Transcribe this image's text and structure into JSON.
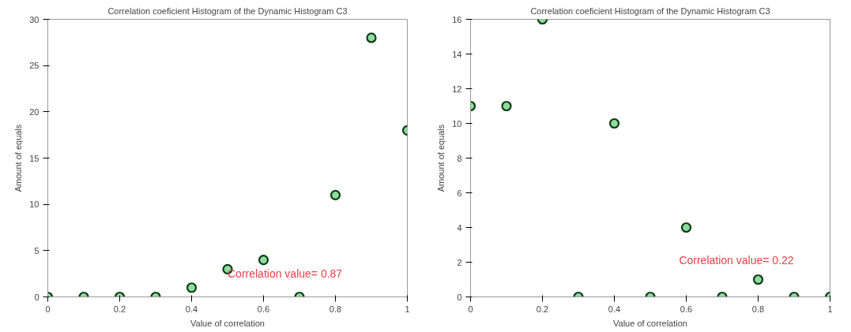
{
  "chart_data": [
    {
      "type": "scatter",
      "title": "Correlation coeficient Histogram of the Dynamic Histogram C3",
      "xlabel": "Value of correlation",
      "ylabel": "Amount of equals",
      "x": [
        0,
        0.1,
        0.2,
        0.3,
        0.4,
        0.5,
        0.6,
        0.7,
        0.8,
        0.9,
        1
      ],
      "series": [
        {
          "color": "#8fdba0",
          "values": [
            0,
            0,
            0,
            0,
            1,
            3,
            4,
            0,
            11,
            28,
            18
          ]
        }
      ],
      "xlim": [
        0,
        1
      ],
      "ylim": [
        0,
        30
      ],
      "xticks": [
        0,
        0.2,
        0.4,
        0.6,
        0.8,
        1
      ],
      "yticks": [
        0,
        5,
        10,
        15,
        20,
        25,
        30
      ],
      "marker": "circle",
      "grid": false,
      "annotations": [
        "Correlation value= 0.87"
      ]
    },
    {
      "type": "scatter",
      "title": "Correlation coeficient Histogram of the Dynamic Histogram C3",
      "xlabel": "Value of correlation",
      "ylabel": "Amount of equals",
      "x": [
        0,
        0.1,
        0.2,
        0.3,
        0.4,
        0.5,
        0.6,
        0.7,
        0.8,
        0.9,
        1
      ],
      "series": [
        {
          "color": "#8fdba0",
          "values": [
            11,
            11,
            16,
            0,
            10,
            0,
            4,
            0,
            1,
            0,
            0
          ]
        }
      ],
      "xlim": [
        0,
        1
      ],
      "ylim": [
        0,
        16
      ],
      "xticks": [
        0,
        0.2,
        0.4,
        0.6,
        0.8,
        1
      ],
      "yticks": [
        0,
        2,
        4,
        6,
        8,
        10,
        12,
        14,
        16
      ],
      "marker": "circle",
      "grid": false,
      "annotations": [
        "Correlation value= 0.22"
      ]
    }
  ]
}
